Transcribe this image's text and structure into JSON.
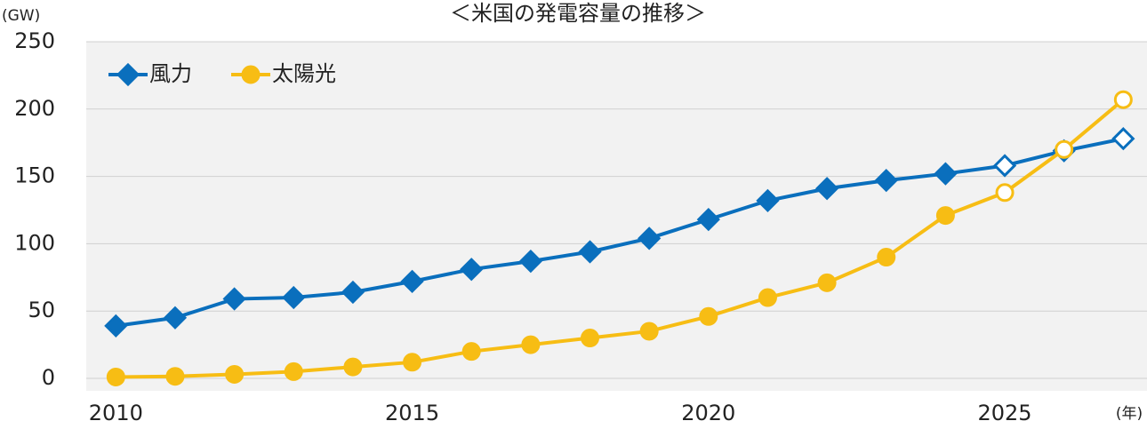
{
  "chart_data": {
    "type": "line",
    "title": "＜米国の発電容量の推移＞",
    "ylabel": "(GW)",
    "xlabel": "(年)",
    "x": [
      2010,
      2011,
      2012,
      2013,
      2014,
      2015,
      2016,
      2017,
      2018,
      2019,
      2020,
      2021,
      2022,
      2023,
      2024,
      2025,
      2026,
      2027
    ],
    "series": [
      {
        "name": "風力",
        "color": "#0a6fbd",
        "marker": "diamond",
        "values": [
          39,
          45,
          59,
          60,
          64,
          72,
          81,
          87,
          94,
          104,
          118,
          132,
          141,
          147,
          152,
          158,
          169,
          178
        ]
      },
      {
        "name": "太陽光",
        "color": "#f7bd14",
        "marker": "circle",
        "values": [
          1,
          1.5,
          3,
          5,
          8.5,
          12,
          20,
          25,
          30,
          35,
          46,
          60,
          71,
          90,
          121,
          138,
          170,
          207
        ]
      }
    ],
    "open_markers_from": 2025,
    "xlim": [
      2009.5,
      2027.4
    ],
    "xticks": [
      2010,
      2015,
      2020,
      2025
    ],
    "ylim": [
      0,
      250
    ],
    "yticks": [
      0,
      50,
      100,
      150,
      200,
      250
    ],
    "grid": true,
    "legend": "top-left",
    "plot_background": "#f2f2f2"
  }
}
